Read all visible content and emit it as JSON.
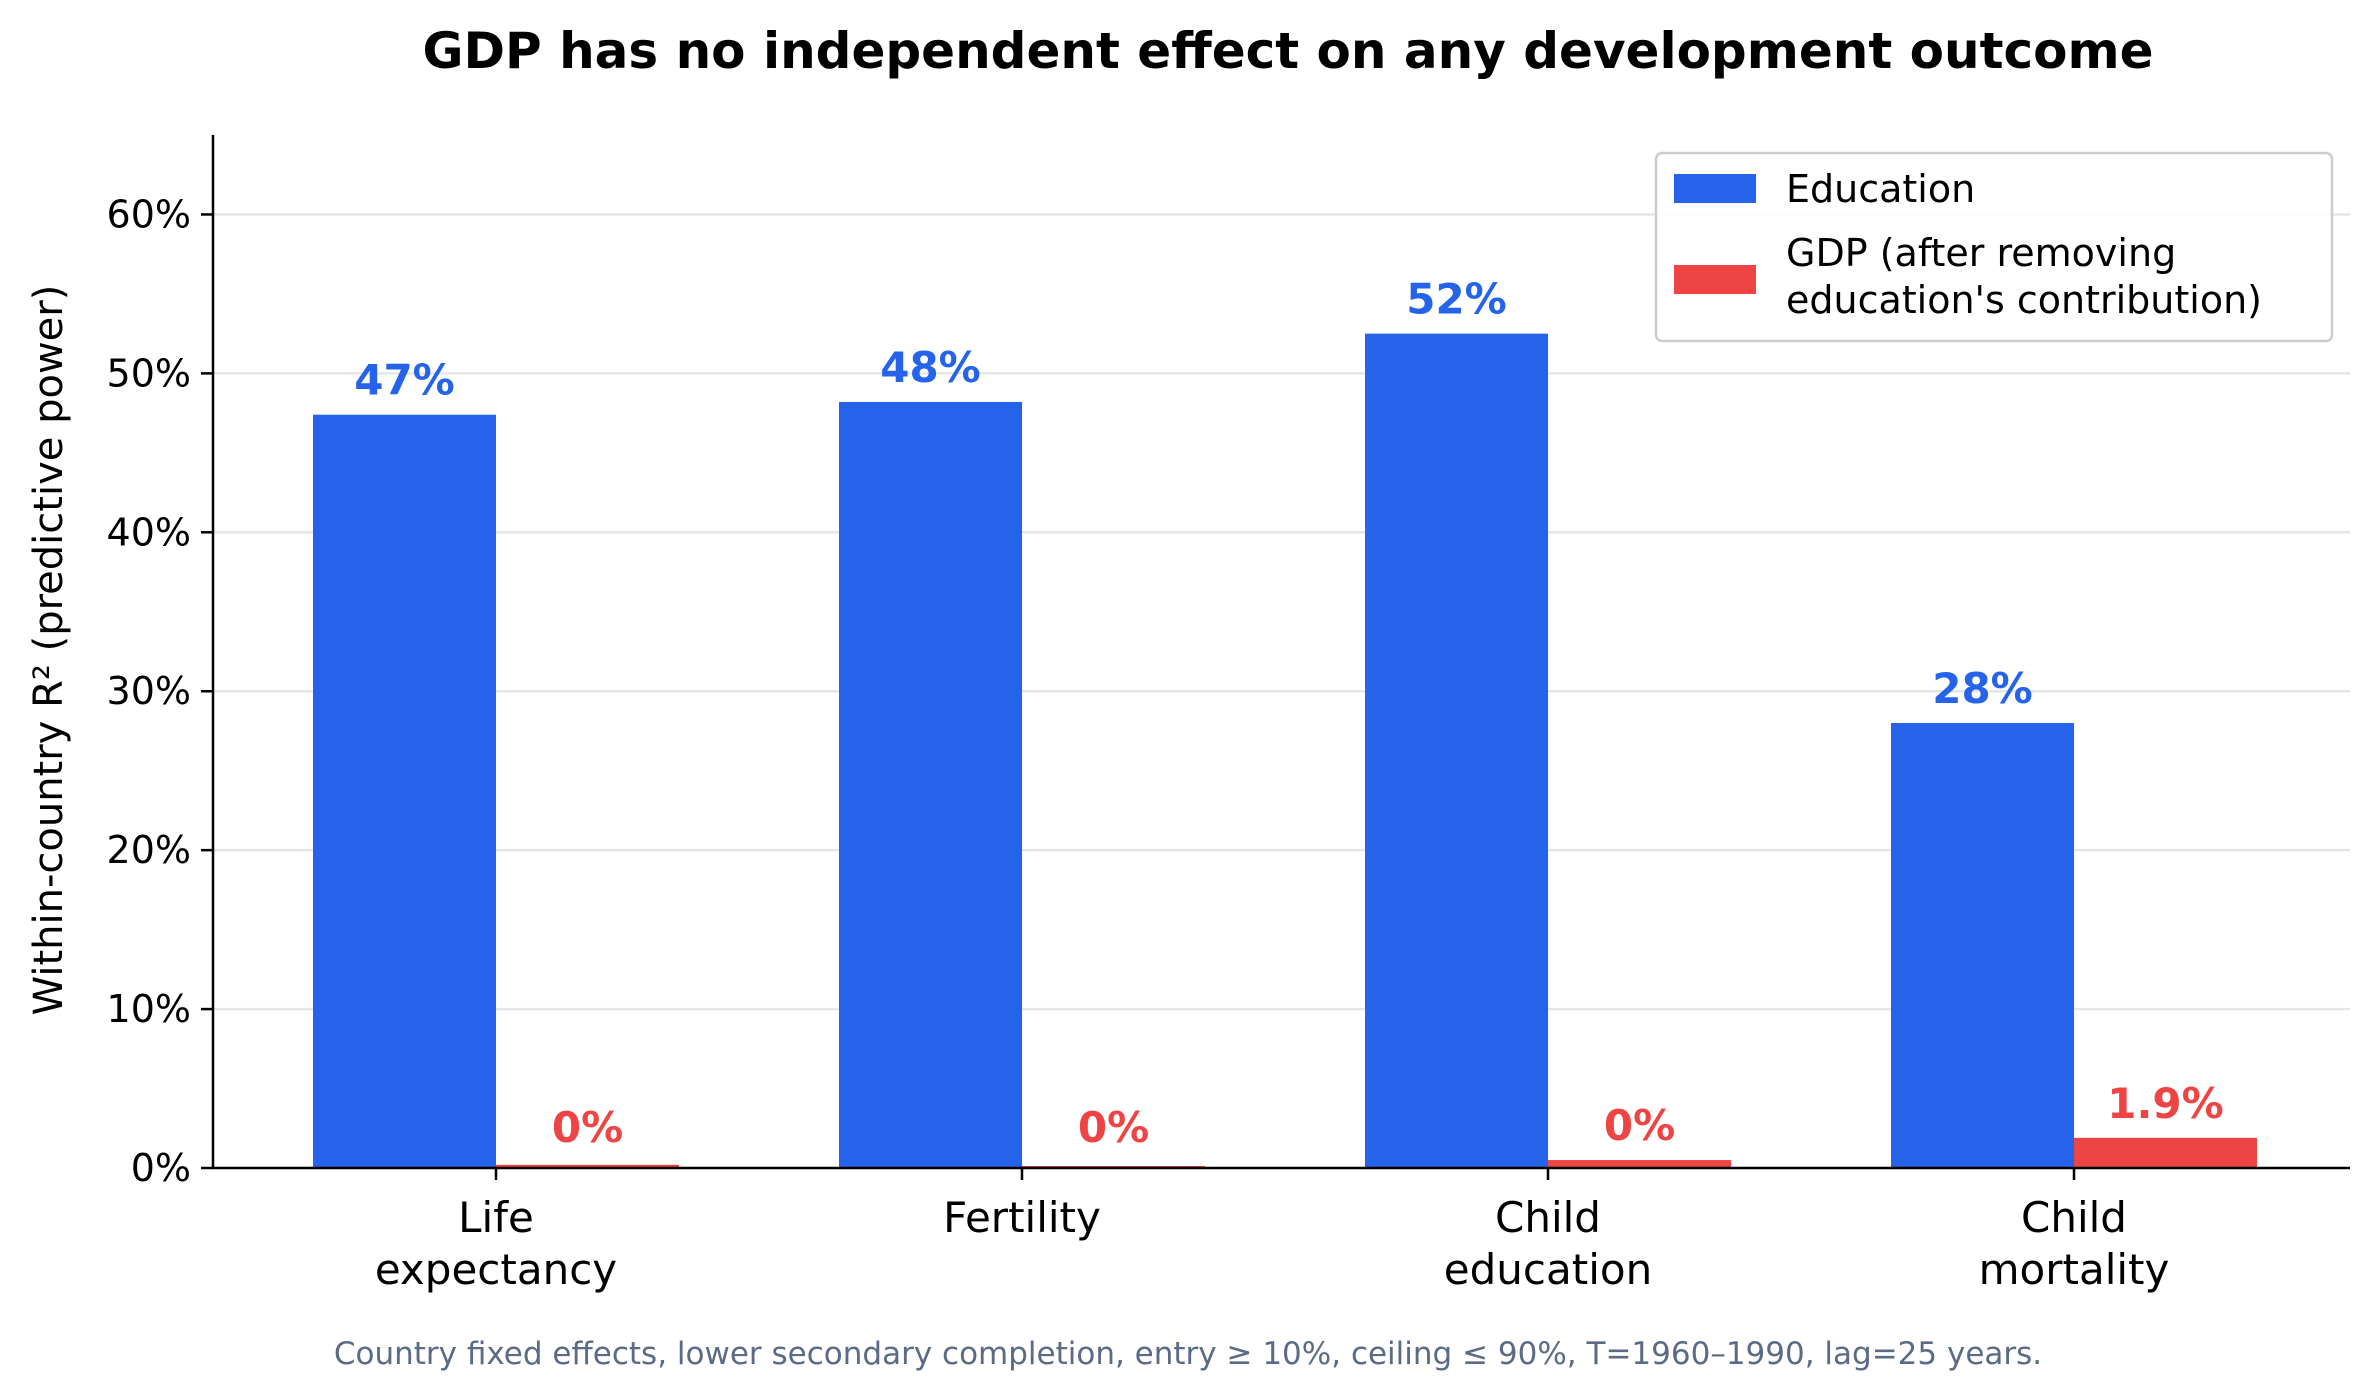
{
  "chart_data": {
    "type": "bar",
    "title": "GDP has no independent effect on any development outcome",
    "ylabel": "Within-country R² (predictive power)",
    "xlabel": "",
    "ylim": [
      0,
      65
    ],
    "yticks": [
      0,
      10,
      20,
      30,
      40,
      50,
      60
    ],
    "ytick_labels": [
      "0%",
      "10%",
      "20%",
      "30%",
      "40%",
      "50%",
      "60%"
    ],
    "grid": "horizontal",
    "legend_position": "top-right",
    "categories": [
      [
        "Life",
        "expectancy"
      ],
      [
        "Fertility"
      ],
      [
        "Child",
        "education"
      ],
      [
        "Child",
        "mortality"
      ]
    ],
    "series": [
      {
        "name": "Education",
        "color": "#2563eb",
        "values": [
          47.4,
          48.2,
          52.5,
          28.0
        ],
        "labels": [
          "47%",
          "48%",
          "52%",
          "28%"
        ]
      },
      {
        "name": "GDP (after removing\neducation's contribution)",
        "legend_lines": [
          "GDP (after removing",
          "education's contribution)"
        ],
        "color": "#ef4444",
        "values": [
          0.2,
          0.1,
          0.5,
          1.9
        ],
        "labels": [
          "0%",
          "0%",
          "0%",
          "1.9%"
        ]
      }
    ],
    "footnote": "Country fixed effects, lower secondary completion, entry ≥ 10%, ceiling ≤ 90%, T=1960–1990, lag=25 years."
  }
}
